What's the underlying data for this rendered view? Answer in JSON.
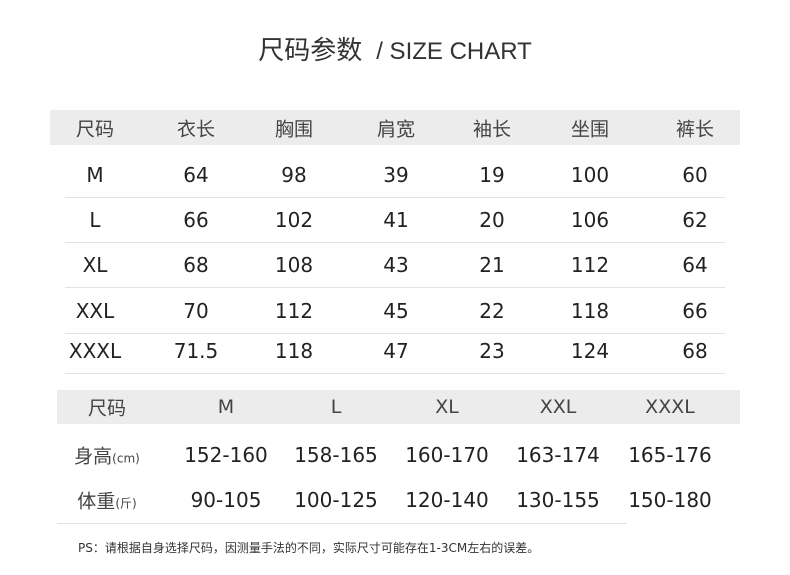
{
  "title": {
    "cn": "尺码参数",
    "en": "/ SIZE CHART"
  },
  "garment_table": {
    "headers": [
      "尺码",
      "衣长",
      "胸围",
      "肩宽",
      "袖长",
      "坐围",
      "裤长"
    ],
    "rows": [
      [
        "M",
        "64",
        "98",
        "39",
        "19",
        "100",
        "60"
      ],
      [
        "L",
        "66",
        "102",
        "41",
        "20",
        "106",
        "62"
      ],
      [
        "XL",
        "68",
        "108",
        "43",
        "21",
        "112",
        "64"
      ],
      [
        "XXL",
        "70",
        "112",
        "45",
        "22",
        "118",
        "66"
      ],
      [
        "XXXL",
        "71.5",
        "118",
        "47",
        "23",
        "124",
        "68"
      ]
    ]
  },
  "fit_table": {
    "headers": [
      "尺码",
      "M",
      "L",
      "XL",
      "XXL",
      "XXXL"
    ],
    "rows": [
      {
        "label": "身高",
        "unit": "(cm)",
        "values": [
          "152-160",
          "158-165",
          "160-170",
          "163-174",
          "165-176"
        ]
      },
      {
        "label": "体重",
        "unit": "(斤)",
        "values": [
          "90-105",
          "100-125",
          "120-140",
          "130-155",
          "150-180"
        ]
      }
    ]
  },
  "note": "PS：请根据自身选择尺码，因测量手法的不同，实际尺寸可能存在1-3CM左右的误差。",
  "colors": {
    "header_band": "#ececec",
    "divider": "#e3e3e3",
    "text": "#222222"
  }
}
